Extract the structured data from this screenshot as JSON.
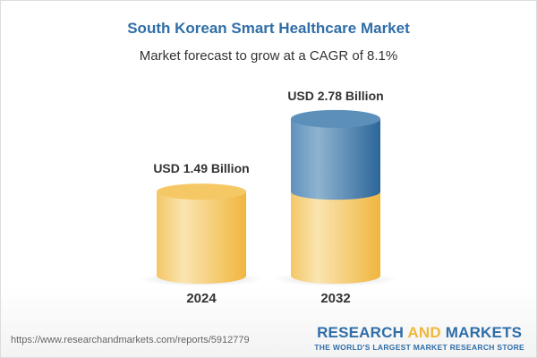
{
  "title": "South Korean Smart Healthcare Market",
  "subtitle": "Market forecast to grow at a CAGR of 8.1%",
  "chart_data": {
    "type": "bar",
    "style": "3d-cylinder",
    "categories": [
      "2024",
      "2032"
    ],
    "values": [
      1.49,
      2.78
    ],
    "data_labels": [
      "USD 1.49 Billion",
      "USD 2.78 Billion"
    ],
    "unit": "USD Billion",
    "colors": {
      "base": "#f2c04e",
      "growth": "#3f78aa"
    }
  },
  "footer": {
    "url": "https://www.researchandmarkets.com/reports/5912779",
    "logo_part1": "RESEARCH ",
    "logo_part2": "AND",
    "logo_part3": " MARKETS",
    "tagline": "THE WORLD'S LARGEST MARKET RESEARCH STORE"
  }
}
